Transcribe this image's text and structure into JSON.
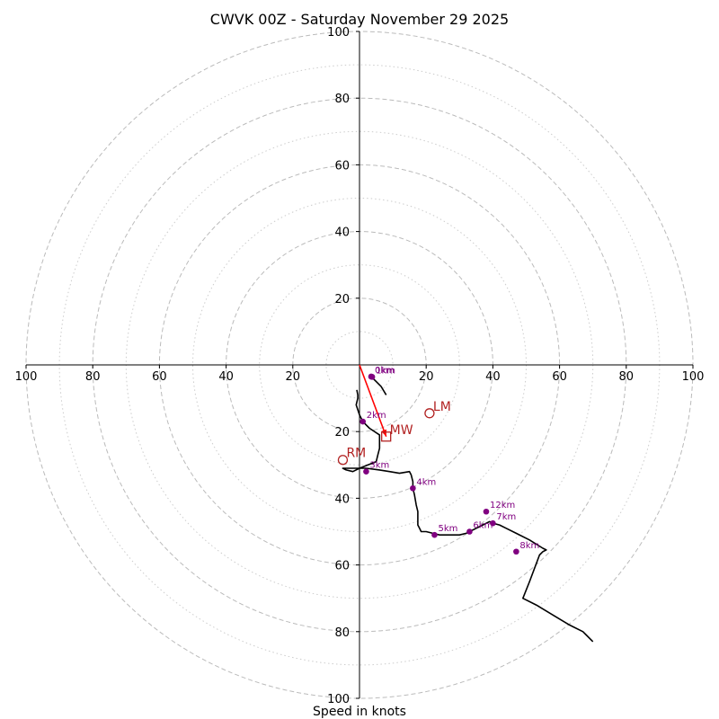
{
  "chart_data": {
    "type": "hodograph",
    "title": "CWVK 00Z - Saturday November 29 2025",
    "xlabel": "Speed in knots",
    "units": "knots",
    "range": 100,
    "major_rings": [
      20,
      40,
      60,
      80,
      100
    ],
    "minor_rings": [
      10,
      30,
      50,
      70,
      90
    ],
    "x_tick_labels": [
      "100",
      "80",
      "60",
      "40",
      "20",
      "20",
      "40",
      "60",
      "80",
      "100"
    ],
    "x_tick_values": [
      -100,
      -80,
      -60,
      -40,
      -20,
      20,
      40,
      60,
      80,
      100
    ],
    "y_tick_labels_upper": [
      "20",
      "40",
      "60",
      "80",
      "100"
    ],
    "y_tick_labels_lower": [
      "20",
      "40",
      "60",
      "80",
      "100"
    ],
    "trace": [
      [
        -0.8,
        -7.5
      ],
      [
        -0.5,
        -9
      ],
      [
        -0.5,
        -10
      ],
      [
        -1,
        -12
      ],
      [
        0,
        -15
      ],
      [
        1,
        -17
      ],
      [
        3,
        -19
      ],
      [
        6,
        -21
      ],
      [
        6,
        -23
      ],
      [
        6,
        -25
      ],
      [
        5.5,
        -27
      ],
      [
        5,
        -29
      ],
      [
        0,
        -31
      ],
      [
        -2,
        -32
      ],
      [
        -4,
        -31.5
      ],
      [
        -5,
        -31
      ],
      [
        -2,
        -31
      ],
      [
        2,
        -31
      ],
      [
        6,
        -31.5
      ],
      [
        9,
        -32
      ],
      [
        12,
        -32.5
      ],
      [
        15,
        -32
      ],
      [
        15.5,
        -33
      ],
      [
        16,
        -35
      ],
      [
        16,
        -37
      ],
      [
        16.5,
        -39
      ],
      [
        17,
        -42
      ],
      [
        17.5,
        -44
      ],
      [
        17.5,
        -48
      ],
      [
        18,
        -49
      ],
      [
        18.5,
        -50
      ],
      [
        20,
        -50
      ],
      [
        22,
        -50.5
      ],
      [
        24,
        -51
      ],
      [
        26,
        -51
      ],
      [
        28,
        -51
      ],
      [
        30,
        -51
      ],
      [
        32,
        -50.5
      ],
      [
        33,
        -50
      ],
      [
        35,
        -49
      ],
      [
        37,
        -48
      ],
      [
        38,
        -47.5
      ],
      [
        39,
        -47
      ],
      [
        40,
        -47.5
      ],
      [
        42,
        -48
      ],
      [
        44,
        -49
      ],
      [
        47,
        -50.5
      ],
      [
        51,
        -52.5
      ],
      [
        55,
        -55
      ],
      [
        56,
        -55.5
      ],
      [
        55,
        -56
      ],
      [
        54,
        -57
      ],
      [
        51,
        -65
      ],
      [
        49,
        -70
      ],
      [
        53,
        -72
      ],
      [
        58,
        -75
      ],
      [
        63,
        -78
      ],
      [
        67,
        -80
      ],
      [
        68,
        -81
      ],
      [
        70,
        -83
      ]
    ],
    "trace_lowlevel": [
      [
        3.5,
        -3.5
      ],
      [
        5,
        -5
      ],
      [
        6.5,
        -6.5
      ],
      [
        8,
        -9
      ]
    ],
    "height_markers": [
      {
        "label": "0km",
        "u": 3.5,
        "v": -3.5
      },
      {
        "label": "1km",
        "u": 3.8,
        "v": -3.6
      },
      {
        "label": "2km",
        "u": 1,
        "v": -17
      },
      {
        "label": "3km",
        "u": 2,
        "v": -32
      },
      {
        "label": "4km",
        "u": 16,
        "v": -37
      },
      {
        "label": "5km",
        "u": 22.5,
        "v": -51
      },
      {
        "label": "6km",
        "u": 33,
        "v": -50
      },
      {
        "label": "7km",
        "u": 40,
        "v": -47.5
      },
      {
        "label": "8km",
        "u": 47,
        "v": -56
      },
      {
        "label": "12km",
        "u": 38,
        "v": -44
      }
    ],
    "storm_motions": [
      {
        "label": "MW",
        "u": 8,
        "v": -21.5,
        "shape": "square"
      },
      {
        "label": "LM",
        "u": 21,
        "v": -14.5,
        "shape": "circle"
      },
      {
        "label": "RM",
        "u": -5,
        "v": -28.5,
        "shape": "circle"
      }
    ],
    "shear_vector": {
      "from": [
        0,
        0
      ],
      "to": [
        8,
        -21.5
      ]
    },
    "colors": {
      "trace": "#000000",
      "marker": "#800080",
      "storm": "#b22222",
      "shear": "#ff0000",
      "grid": "#bbbbbb"
    }
  }
}
